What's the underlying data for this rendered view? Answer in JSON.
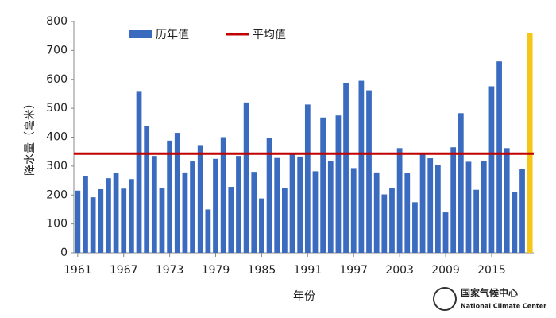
{
  "chart_data": {
    "type": "bar",
    "x_label": "年份",
    "y_label": "降水量（毫米）",
    "categories": [
      "1961",
      null,
      null,
      null,
      null,
      null,
      "1967",
      null,
      null,
      null,
      null,
      null,
      "1973",
      null,
      null,
      null,
      null,
      null,
      "1979",
      null,
      null,
      null,
      null,
      null,
      "1985",
      null,
      null,
      null,
      null,
      null,
      "1991",
      null,
      null,
      null,
      null,
      null,
      "1997",
      null,
      null,
      null,
      null,
      null,
      "2003",
      null,
      null,
      null,
      null,
      null,
      "2009",
      null,
      null,
      null,
      null,
      null,
      "2015",
      null,
      null,
      null,
      null,
      null
    ],
    "series": [
      {
        "name": "历年值",
        "color": "#3b6bbf",
        "values": [
          215,
          265,
          192,
          220,
          258,
          277,
          222,
          255,
          557,
          438,
          335,
          225,
          388,
          415,
          278,
          316,
          370,
          150,
          325,
          400,
          228,
          335,
          520,
          280,
          188,
          398,
          328,
          225,
          340,
          333,
          513,
          282,
          468,
          317,
          475,
          588,
          293,
          595,
          562,
          278,
          202,
          225,
          362,
          277,
          175,
          340,
          327,
          303,
          140,
          365,
          483,
          315,
          218,
          318,
          576,
          662,
          362,
          210,
          290,
          760
        ],
        "bar_colors": [
          "#3b6bbf",
          "#3b6bbf",
          "#3b6bbf",
          "#3b6bbf",
          "#3b6bbf",
          "#3b6bbf",
          "#3b6bbf",
          "#3b6bbf",
          "#3b6bbf",
          "#3b6bbf",
          "#3b6bbf",
          "#3b6bbf",
          "#3b6bbf",
          "#3b6bbf",
          "#3b6bbf",
          "#3b6bbf",
          "#3b6bbf",
          "#3b6bbf",
          "#3b6bbf",
          "#3b6bbf",
          "#3b6bbf",
          "#3b6bbf",
          "#3b6bbf",
          "#3b6bbf",
          "#3b6bbf",
          "#3b6bbf",
          "#3b6bbf",
          "#3b6bbf",
          "#3b6bbf",
          "#3b6bbf",
          "#3b6bbf",
          "#3b6bbf",
          "#3b6bbf",
          "#3b6bbf",
          "#3b6bbf",
          "#3b6bbf",
          "#3b6bbf",
          "#3b6bbf",
          "#3b6bbf",
          "#3b6bbf",
          "#3b6bbf",
          "#3b6bbf",
          "#3b6bbf",
          "#3b6bbf",
          "#3b6bbf",
          "#3b6bbf",
          "#3b6bbf",
          "#3b6bbf",
          "#3b6bbf",
          "#3b6bbf",
          "#3b6bbf",
          "#3b6bbf",
          "#3b6bbf",
          "#3b6bbf",
          "#3b6bbf",
          "#3b6bbf",
          "#3b6bbf",
          "#3b6bbf",
          "#3b6bbf",
          "#f5c518"
        ]
      },
      {
        "name": "平均值",
        "color": "#c00000",
        "value": 343
      }
    ],
    "ylim": [
      0,
      800
    ],
    "yticks": [
      0,
      100,
      200,
      300,
      400,
      500,
      600,
      700,
      800
    ],
    "grid": false,
    "logo": {
      "name_cn": "国家气候中心",
      "name_en": "National Climate Center"
    }
  }
}
